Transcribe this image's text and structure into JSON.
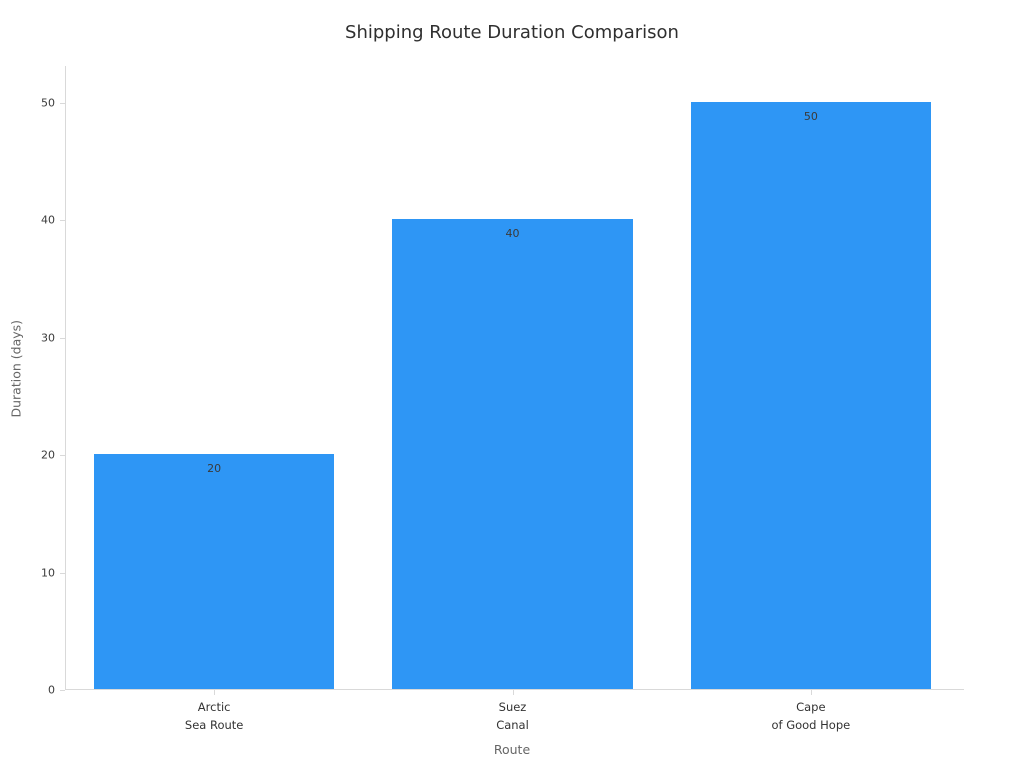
{
  "chart_data": {
    "type": "bar",
    "title": "Shipping Route Duration Comparison",
    "xlabel": "Route",
    "ylabel": "Duration (days)",
    "categories": [
      [
        "Arctic",
        "Sea Route"
      ],
      [
        "Suez",
        "Canal"
      ],
      [
        "Cape",
        "of Good Hope"
      ]
    ],
    "values": [
      20,
      40,
      50
    ],
    "yticks": [
      0,
      10,
      20,
      30,
      40,
      50
    ],
    "ylim": [
      0,
      52.8
    ],
    "grid": false,
    "legend": "none",
    "colors": {
      "bar": "#2e96f5",
      "axis_line": "#d9d9d9",
      "tick_text": "#3b3b3b",
      "value_label_text": "#3a3a3a",
      "title_text": "#2f2f2f",
      "axis_title_text": "#666666"
    }
  }
}
